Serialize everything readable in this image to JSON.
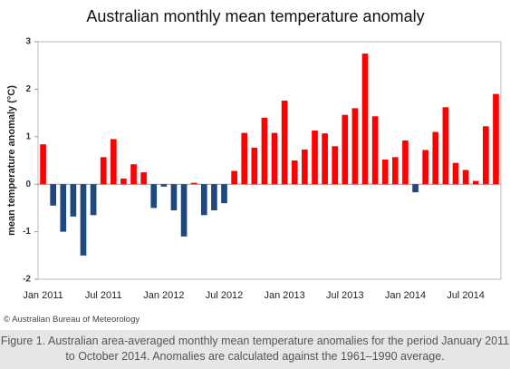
{
  "chart_data": {
    "type": "bar",
    "title": "Australian monthly mean temperature anomaly",
    "y_label": "mean temperature anomaly (°C)",
    "categories": [
      "Jan 2011",
      null,
      null,
      null,
      null,
      null,
      "Jul 2011",
      null,
      null,
      null,
      null,
      null,
      "Jan 2012",
      null,
      null,
      null,
      null,
      null,
      "Jul 2012",
      null,
      null,
      null,
      null,
      null,
      "Jan 2013",
      null,
      null,
      null,
      null,
      null,
      "Jul 2013",
      null,
      null,
      null,
      null,
      null,
      "Jan 2014",
      null,
      null,
      null,
      null,
      null,
      "Jul 2014",
      null,
      null,
      null
    ],
    "values": [
      0.84,
      -0.45,
      -1.0,
      -0.68,
      -1.5,
      -0.65,
      0.57,
      0.95,
      0.12,
      0.42,
      0.25,
      -0.5,
      -0.05,
      -0.55,
      -1.1,
      0.03,
      -0.65,
      -0.55,
      -0.4,
      0.28,
      1.08,
      0.77,
      1.4,
      1.08,
      1.76,
      0.5,
      0.73,
      1.13,
      1.07,
      0.8,
      1.46,
      1.6,
      2.75,
      1.43,
      0.52,
      0.57,
      0.92,
      -0.17,
      0.72,
      1.1,
      1.62,
      0.45,
      0.3,
      0.07,
      1.22,
      1.9
    ],
    "colors": {
      "positive": "#ff0000",
      "negative": "#1f497d"
    },
    "ylim": [
      -2,
      3
    ],
    "yticks": [
      -2,
      -1,
      0,
      1,
      2,
      3
    ],
    "credit": "© Australian Bureau of Meteorology"
  },
  "caption": "Figure 1. Australian area-averaged monthly mean temperature anomalies for the period January 2011 to October 2014. Anomalies are calculated against the 1961–1990 average."
}
